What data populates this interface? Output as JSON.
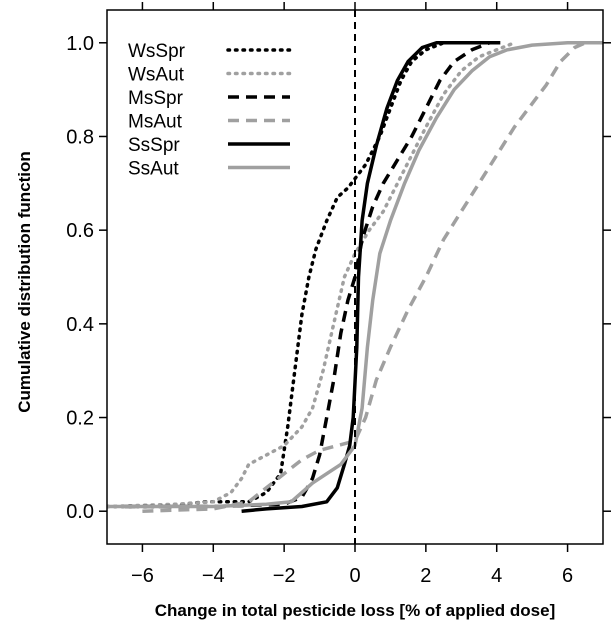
{
  "chart_data": {
    "type": "line",
    "title": "",
    "xlabel": "Change in total pesticide loss [% of applied dose]",
    "ylabel": "Cumulative distribution function",
    "xlim": [
      -7,
      7
    ],
    "ylim": [
      -0.07,
      1.07
    ],
    "x_ticks": [
      -6,
      -4,
      -2,
      0,
      2,
      4,
      6
    ],
    "x_tick_labels": [
      "−6",
      "−4",
      "−2",
      "0",
      "2",
      "4",
      "6"
    ],
    "y_ticks": [
      0.0,
      0.2,
      0.4,
      0.6,
      0.8,
      1.0
    ],
    "y_tick_labels": [
      "0.0",
      "0.2",
      "0.4",
      "0.6",
      "0.8",
      "1.0"
    ],
    "grid": false,
    "legend_position": "top-left",
    "reference_line": {
      "x": 0,
      "style": "dashed"
    },
    "series": [
      {
        "name": "WsSpr",
        "color": "#000000",
        "dash": "dotted",
        "points": [
          [
            -7,
            0.01
          ],
          [
            -5.5,
            0.01
          ],
          [
            -4.2,
            0.02
          ],
          [
            -3,
            0.02
          ],
          [
            -2.5,
            0.04
          ],
          [
            -2.1,
            0.08
          ],
          [
            -1.9,
            0.18
          ],
          [
            -1.7,
            0.3
          ],
          [
            -1.5,
            0.42
          ],
          [
            -1.3,
            0.5
          ],
          [
            -1.1,
            0.56
          ],
          [
            -0.8,
            0.62
          ],
          [
            -0.5,
            0.67
          ],
          [
            -0.2,
            0.69
          ],
          [
            0,
            0.71
          ],
          [
            0.3,
            0.74
          ],
          [
            0.7,
            0.8
          ],
          [
            1.0,
            0.86
          ],
          [
            1.3,
            0.92
          ],
          [
            1.6,
            0.96
          ],
          [
            2.0,
            0.985
          ],
          [
            2.5,
            1.0
          ],
          [
            3.5,
            1.0
          ]
        ]
      },
      {
        "name": "WsAut",
        "color": "#a0a0a0",
        "dash": "dotted",
        "points": [
          [
            -7,
            0.01
          ],
          [
            -5,
            0.015
          ],
          [
            -4,
            0.02
          ],
          [
            -3.5,
            0.04
          ],
          [
            -3.2,
            0.07
          ],
          [
            -3.0,
            0.1
          ],
          [
            -2.5,
            0.12
          ],
          [
            -2.0,
            0.14
          ],
          [
            -1.5,
            0.18
          ],
          [
            -1.2,
            0.22
          ],
          [
            -0.9,
            0.3
          ],
          [
            -0.6,
            0.4
          ],
          [
            -0.3,
            0.5
          ],
          [
            0,
            0.55
          ],
          [
            0.4,
            0.6
          ],
          [
            0.8,
            0.64
          ],
          [
            1.2,
            0.7
          ],
          [
            1.6,
            0.76
          ],
          [
            2.0,
            0.82
          ],
          [
            2.5,
            0.89
          ],
          [
            3.0,
            0.94
          ],
          [
            3.5,
            0.97
          ],
          [
            4.5,
            1.0
          ]
        ]
      },
      {
        "name": "MsSpr",
        "color": "#000000",
        "dash": "dashed",
        "points": [
          [
            -6.5,
            0.01
          ],
          [
            -4,
            0.01
          ],
          [
            -2,
            0.015
          ],
          [
            -1.5,
            0.03
          ],
          [
            -1.2,
            0.07
          ],
          [
            -1.0,
            0.12
          ],
          [
            -0.8,
            0.2
          ],
          [
            -0.6,
            0.28
          ],
          [
            -0.4,
            0.38
          ],
          [
            -0.2,
            0.45
          ],
          [
            0,
            0.5
          ],
          [
            0.2,
            0.58
          ],
          [
            0.5,
            0.65
          ],
          [
            0.8,
            0.7
          ],
          [
            1.2,
            0.75
          ],
          [
            1.6,
            0.8
          ],
          [
            2.0,
            0.86
          ],
          [
            2.4,
            0.92
          ],
          [
            2.8,
            0.96
          ],
          [
            3.3,
            0.985
          ],
          [
            3.8,
            1.0
          ],
          [
            4.2,
            1.0
          ]
        ]
      },
      {
        "name": "MsAut",
        "color": "#a0a0a0",
        "dash": "dashed",
        "points": [
          [
            -6,
            0.0
          ],
          [
            -4,
            0.005
          ],
          [
            -3,
            0.02
          ],
          [
            -2.5,
            0.05
          ],
          [
            -2,
            0.08
          ],
          [
            -1.5,
            0.11
          ],
          [
            -1.0,
            0.13
          ],
          [
            -0.5,
            0.14
          ],
          [
            0,
            0.15
          ],
          [
            0.3,
            0.2
          ],
          [
            0.6,
            0.28
          ],
          [
            1.0,
            0.35
          ],
          [
            1.5,
            0.43
          ],
          [
            2.0,
            0.5
          ],
          [
            2.5,
            0.58
          ],
          [
            3.0,
            0.64
          ],
          [
            3.5,
            0.7
          ],
          [
            4.0,
            0.76
          ],
          [
            4.5,
            0.82
          ],
          [
            5.0,
            0.87
          ],
          [
            5.4,
            0.91
          ],
          [
            5.8,
            0.96
          ],
          [
            6.2,
            0.99
          ],
          [
            6.5,
            1.0
          ]
        ]
      },
      {
        "name": "SsSpr",
        "color": "#000000",
        "dash": "solid",
        "points": [
          [
            -3.2,
            0.0
          ],
          [
            -2.5,
            0.005
          ],
          [
            -1.5,
            0.01
          ],
          [
            -0.8,
            0.02
          ],
          [
            -0.5,
            0.05
          ],
          [
            -0.3,
            0.1
          ],
          [
            -0.15,
            0.14
          ],
          [
            -0.05,
            0.2
          ],
          [
            0.05,
            0.35
          ],
          [
            0.1,
            0.5
          ],
          [
            0.2,
            0.62
          ],
          [
            0.35,
            0.7
          ],
          [
            0.6,
            0.78
          ],
          [
            0.9,
            0.86
          ],
          [
            1.2,
            0.92
          ],
          [
            1.5,
            0.96
          ],
          [
            1.9,
            0.99
          ],
          [
            2.3,
            1.0
          ],
          [
            4.1,
            1.0
          ]
        ]
      },
      {
        "name": "SsAut",
        "color": "#a0a0a0",
        "dash": "solid",
        "points": [
          [
            -7,
            0.01
          ],
          [
            -4,
            0.01
          ],
          [
            -2.5,
            0.015
          ],
          [
            -1.8,
            0.02
          ],
          [
            -1.5,
            0.04
          ],
          [
            -1.2,
            0.06
          ],
          [
            -0.8,
            0.08
          ],
          [
            -0.4,
            0.1
          ],
          [
            0,
            0.14
          ],
          [
            0.2,
            0.22
          ],
          [
            0.35,
            0.35
          ],
          [
            0.5,
            0.45
          ],
          [
            0.7,
            0.55
          ],
          [
            1.0,
            0.62
          ],
          [
            1.4,
            0.7
          ],
          [
            1.8,
            0.77
          ],
          [
            2.3,
            0.84
          ],
          [
            2.8,
            0.9
          ],
          [
            3.3,
            0.94
          ],
          [
            3.8,
            0.97
          ],
          [
            4.3,
            0.985
          ],
          [
            5.0,
            0.995
          ],
          [
            6.0,
            1.0
          ],
          [
            7.0,
            1.0
          ]
        ]
      }
    ]
  }
}
